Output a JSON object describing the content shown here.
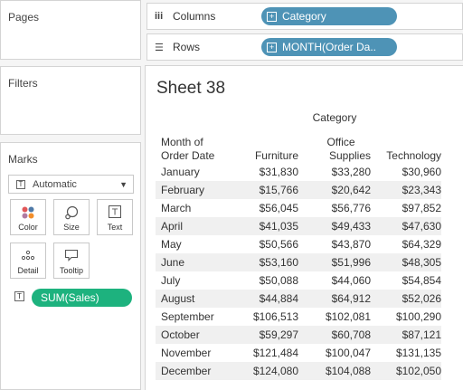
{
  "panels": {
    "pages": "Pages",
    "filters": "Filters",
    "marks": "Marks"
  },
  "marks": {
    "mark_type": "Automatic",
    "buttons": {
      "color": "Color",
      "size": "Size",
      "text": "Text",
      "detail": "Detail",
      "tooltip": "Tooltip"
    },
    "text_field": "SUM(Sales)"
  },
  "shelves": {
    "columns_label": "Columns",
    "columns_pill": "Category",
    "rows_label": "Rows",
    "rows_pill": "MONTH(Order Da.."
  },
  "sheet": {
    "title": "Sheet 38",
    "column_group_header": "Category",
    "row_header_line1": "Month of",
    "row_header_line2": "Order Date",
    "col_furniture": "Furniture",
    "col_office_line1": "Office",
    "col_office_line2": "Supplies",
    "col_technology": "Technology",
    "rows": [
      {
        "month": "January",
        "furniture": "$31,830",
        "office": "$33,280",
        "technology": "$30,960"
      },
      {
        "month": "February",
        "furniture": "$15,766",
        "office": "$20,642",
        "technology": "$23,343"
      },
      {
        "month": "March",
        "furniture": "$56,045",
        "office": "$56,776",
        "technology": "$97,852"
      },
      {
        "month": "April",
        "furniture": "$41,035",
        "office": "$49,433",
        "technology": "$47,630"
      },
      {
        "month": "May",
        "furniture": "$50,566",
        "office": "$43,870",
        "technology": "$64,329"
      },
      {
        "month": "June",
        "furniture": "$53,160",
        "office": "$51,996",
        "technology": "$48,305"
      },
      {
        "month": "July",
        "furniture": "$50,088",
        "office": "$44,060",
        "technology": "$54,854"
      },
      {
        "month": "August",
        "furniture": "$44,884",
        "office": "$64,912",
        "technology": "$52,026"
      },
      {
        "month": "September",
        "furniture": "$106,513",
        "office": "$102,081",
        "technology": "$100,290"
      },
      {
        "month": "October",
        "furniture": "$59,297",
        "office": "$60,708",
        "technology": "$87,121"
      },
      {
        "month": "November",
        "furniture": "$121,484",
        "office": "$100,047",
        "technology": "$131,135"
      },
      {
        "month": "December",
        "furniture": "$124,080",
        "office": "$104,088",
        "technology": "$102,050"
      }
    ]
  },
  "colors": {
    "dimension_pill": "#4e93b6",
    "measure_pill": "#1db27e"
  }
}
